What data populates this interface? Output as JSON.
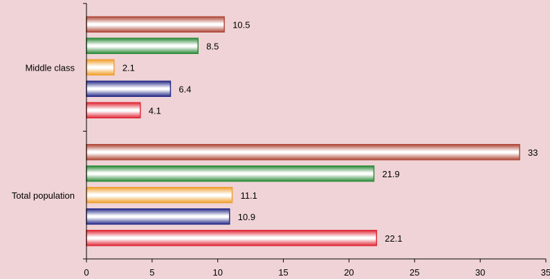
{
  "chart_data": {
    "type": "bar",
    "orientation": "horizontal",
    "title": "",
    "xlabel": "",
    "ylabel": "",
    "xlim": [
      0,
      35
    ],
    "x_ticks": [
      0,
      5,
      10,
      15,
      20,
      25,
      30,
      35
    ],
    "grid": false,
    "legend": "none",
    "categories": [
      "Middle class",
      "Total population"
    ],
    "series": [
      {
        "color": "#b04a3a",
        "values": [
          10.5,
          33
        ]
      },
      {
        "color": "#2e8b3a",
        "values": [
          8.5,
          21.9
        ]
      },
      {
        "color": "#f0a030",
        "values": [
          2.1,
          11.1
        ]
      },
      {
        "color": "#2a2e8a",
        "values": [
          6.4,
          10.9
        ]
      },
      {
        "color": "#e02a38",
        "values": [
          4.1,
          22.1
        ]
      }
    ],
    "data_labels": [
      [
        "10.5",
        "8.5",
        "2.1",
        "6.4",
        "4.1"
      ],
      [
        "33",
        "21.9",
        "11.1",
        "10.9",
        "22.1"
      ]
    ]
  }
}
